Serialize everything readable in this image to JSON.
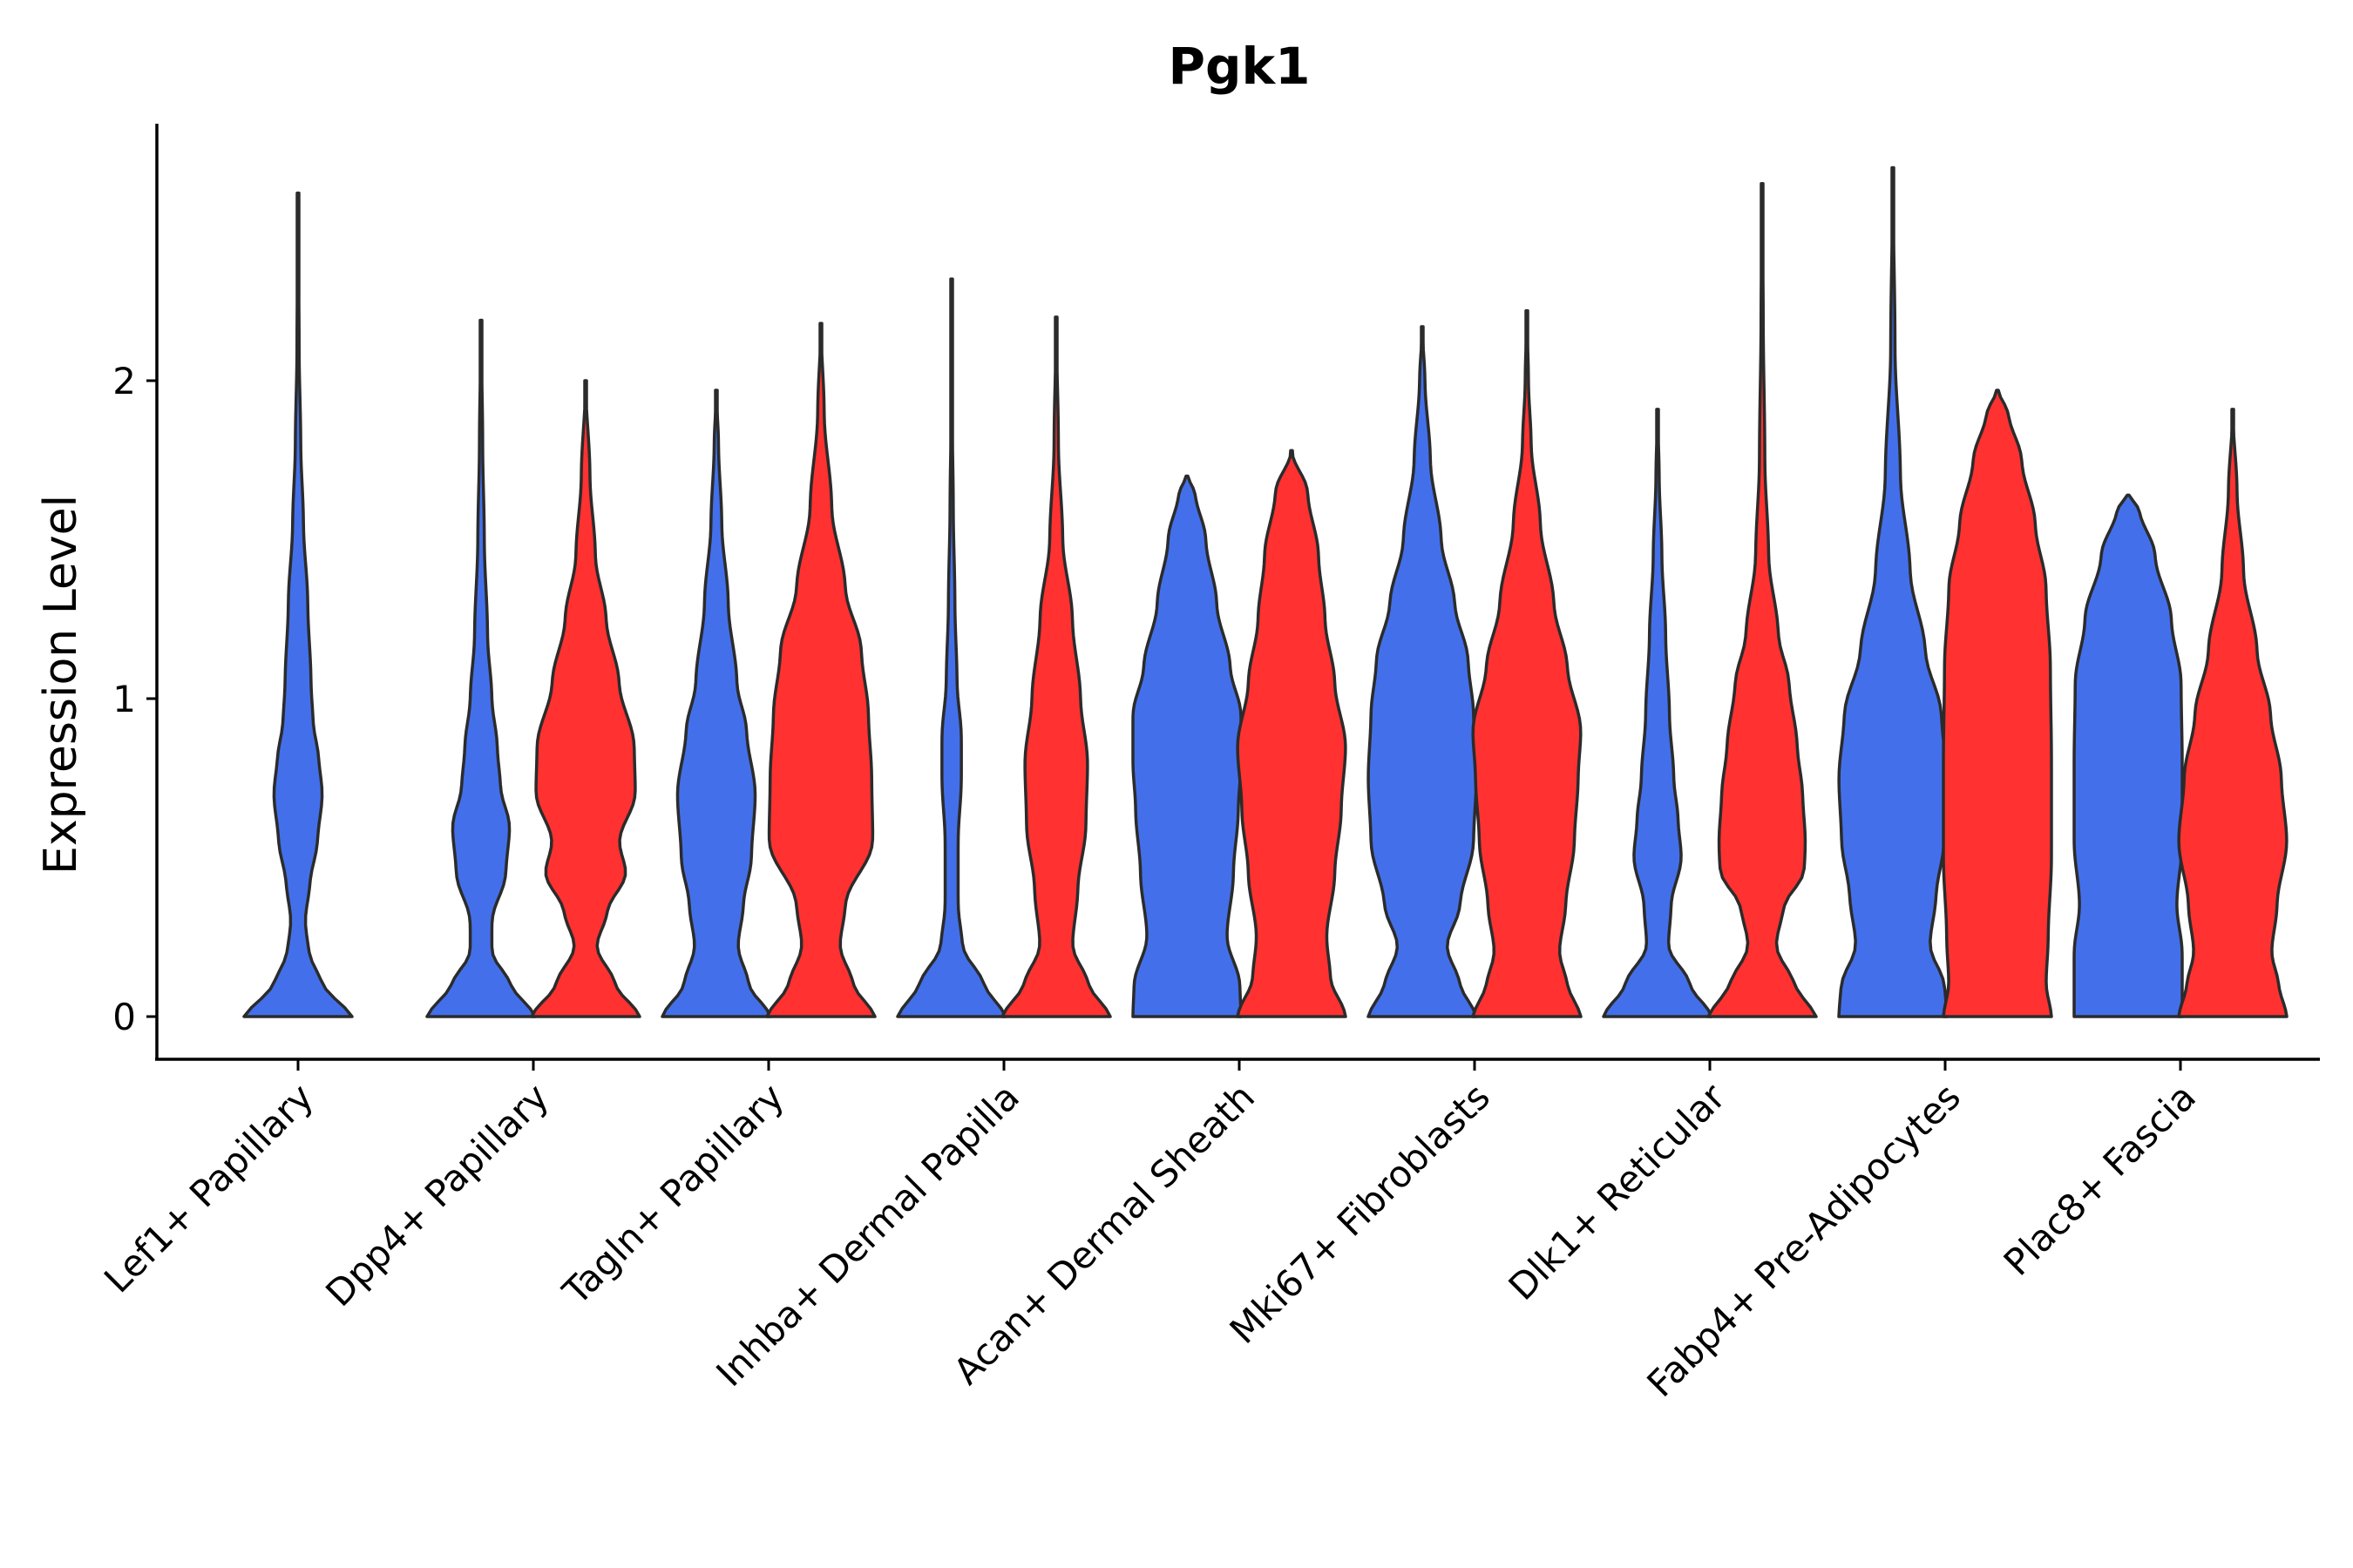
{
  "chart_data": {
    "type": "violin",
    "title": "Pgk1",
    "xlabel": "",
    "ylabel": "Expression Level",
    "ylim": [
      -0.13,
      2.8
    ],
    "yticks": [
      0,
      1,
      2
    ],
    "colors": {
      "group_a": "#4370EA",
      "group_b": "#FF3131",
      "outline": "#2b2b2b"
    },
    "categories": [
      "Lef1+ Papillary",
      "Dpp4+ Papillary",
      "Tagln+ Papillary",
      "Inhba+ Dermal Papilla",
      "Acan+ Dermal Sheath",
      "Mki67+ Fibroblasts",
      "Dlk1+ Reticular",
      "Fabp4+ Pre-Adipocytes",
      "Plac8+ Fascia"
    ],
    "series": [
      {
        "name": "group_a",
        "color": "#4370EA",
        "violins": [
          {
            "category": "Lef1+ Papillary",
            "max": 2.59,
            "halfwidth": [
              [
                0,
                1
              ],
              [
                0.1,
                0.45
              ],
              [
                0.2,
                0.2
              ],
              [
                0.3,
                0.13
              ],
              [
                0.42,
                0.22
              ],
              [
                0.55,
                0.36
              ],
              [
                0.7,
                0.45
              ],
              [
                0.82,
                0.38
              ],
              [
                0.92,
                0.28
              ],
              [
                1.05,
                0.24
              ],
              [
                1.3,
                0.18
              ],
              [
                1.55,
                0.1
              ],
              [
                1.8,
                0.05
              ],
              [
                2.1,
                0.02
              ],
              [
                2.59,
                0
              ]
            ]
          },
          {
            "category": "Dpp4+ Papillary",
            "max": 2.19,
            "halfwidth": [
              [
                0,
                1
              ],
              [
                0.1,
                0.55
              ],
              [
                0.2,
                0.2
              ],
              [
                0.3,
                0.2
              ],
              [
                0.45,
                0.46
              ],
              [
                0.6,
                0.53
              ],
              [
                0.72,
                0.36
              ],
              [
                0.85,
                0.3
              ],
              [
                1.0,
                0.2
              ],
              [
                1.2,
                0.12
              ],
              [
                1.5,
                0.06
              ],
              [
                1.8,
                0.03
              ],
              [
                2.19,
                0
              ]
            ]
          },
          {
            "category": "Tagln+ Papillary",
            "max": 1.97,
            "halfwidth": [
              [
                0,
                1
              ],
              [
                0.1,
                0.6
              ],
              [
                0.22,
                0.4
              ],
              [
                0.35,
                0.5
              ],
              [
                0.5,
                0.65
              ],
              [
                0.7,
                0.72
              ],
              [
                0.9,
                0.56
              ],
              [
                1.05,
                0.38
              ],
              [
                1.3,
                0.22
              ],
              [
                1.55,
                0.1
              ],
              [
                1.8,
                0.04
              ],
              [
                1.97,
                0
              ]
            ]
          },
          {
            "category": "Inhba+ Dermal Papilla",
            "max": 2.32,
            "halfwidth": [
              [
                0,
                1
              ],
              [
                0.1,
                0.6
              ],
              [
                0.22,
                0.2
              ],
              [
                0.35,
                0.12
              ],
              [
                0.55,
                0.12
              ],
              [
                0.75,
                0.18
              ],
              [
                0.88,
                0.18
              ],
              [
                1.05,
                0.1
              ],
              [
                1.3,
                0.06
              ],
              [
                1.6,
                0.03
              ],
              [
                1.9,
                0.01
              ],
              [
                2.32,
                0
              ]
            ]
          },
          {
            "category": "Acan+ Dermal Sheath",
            "max": 1.7,
            "halfwidth": [
              [
                0,
                1
              ],
              [
                0.1,
                0.98
              ],
              [
                0.25,
                0.74
              ],
              [
                0.45,
                0.86
              ],
              [
                0.65,
                0.95
              ],
              [
                0.8,
                1.0
              ],
              [
                0.95,
                1.0
              ],
              [
                1.1,
                0.8
              ],
              [
                1.3,
                0.55
              ],
              [
                1.5,
                0.35
              ],
              [
                1.65,
                0.15
              ],
              [
                1.7,
                0
              ]
            ]
          },
          {
            "category": "Mki67+ Fibroblasts",
            "max": 2.17,
            "halfwidth": [
              [
                0,
                1
              ],
              [
                0.1,
                0.7
              ],
              [
                0.22,
                0.45
              ],
              [
                0.35,
                0.7
              ],
              [
                0.55,
                0.95
              ],
              [
                0.75,
                1.0
              ],
              [
                0.95,
                0.95
              ],
              [
                1.12,
                0.85
              ],
              [
                1.3,
                0.6
              ],
              [
                1.5,
                0.35
              ],
              [
                1.75,
                0.15
              ],
              [
                2.0,
                0.05
              ],
              [
                2.17,
                0
              ]
            ]
          },
          {
            "category": "Dlk1+ Reticular",
            "max": 1.91,
            "halfwidth": [
              [
                0,
                1
              ],
              [
                0.1,
                0.6
              ],
              [
                0.22,
                0.2
              ],
              [
                0.35,
                0.25
              ],
              [
                0.5,
                0.44
              ],
              [
                0.62,
                0.38
              ],
              [
                0.75,
                0.3
              ],
              [
                0.95,
                0.22
              ],
              [
                1.2,
                0.15
              ],
              [
                1.45,
                0.08
              ],
              [
                1.7,
                0.03
              ],
              [
                1.91,
                0
              ]
            ]
          },
          {
            "category": "Fabp4+ Pre-Adipocytes",
            "max": 2.67,
            "halfwidth": [
              [
                0,
                1
              ],
              [
                0.1,
                0.96
              ],
              [
                0.22,
                0.68
              ],
              [
                0.38,
                0.8
              ],
              [
                0.55,
                0.95
              ],
              [
                0.75,
                1.0
              ],
              [
                0.95,
                0.9
              ],
              [
                1.15,
                0.6
              ],
              [
                1.4,
                0.32
              ],
              [
                1.7,
                0.14
              ],
              [
                2.1,
                0.04
              ],
              [
                2.67,
                0
              ]
            ]
          },
          {
            "category": "Plac8+ Fascia",
            "max": 1.64,
            "halfwidth": [
              [
                0,
                1
              ],
              [
                0.1,
                1.0
              ],
              [
                0.2,
                1.0
              ],
              [
                0.35,
                0.9
              ],
              [
                0.55,
                1.0
              ],
              [
                0.8,
                1.0
              ],
              [
                1.05,
                0.98
              ],
              [
                1.25,
                0.8
              ],
              [
                1.45,
                0.5
              ],
              [
                1.6,
                0.2
              ],
              [
                1.64,
                0
              ]
            ]
          }
        ]
      },
      {
        "name": "group_b",
        "color": "#FF3131",
        "violins": [
          {
            "category": "Dpp4+ Papillary",
            "max": 2.0,
            "halfwidth": [
              [
                0,
                1
              ],
              [
                0.1,
                0.55
              ],
              [
                0.22,
                0.2
              ],
              [
                0.33,
                0.4
              ],
              [
                0.45,
                0.75
              ],
              [
                0.55,
                0.62
              ],
              [
                0.7,
                0.92
              ],
              [
                0.85,
                0.9
              ],
              [
                1.05,
                0.62
              ],
              [
                1.25,
                0.38
              ],
              [
                1.45,
                0.18
              ],
              [
                1.7,
                0.08
              ],
              [
                2.0,
                0
              ]
            ]
          },
          {
            "category": "Tagln+ Papillary",
            "max": 2.18,
            "halfwidth": [
              [
                0,
                1
              ],
              [
                0.1,
                0.6
              ],
              [
                0.22,
                0.35
              ],
              [
                0.35,
                0.45
              ],
              [
                0.55,
                0.96
              ],
              [
                0.75,
                0.94
              ],
              [
                0.95,
                0.88
              ],
              [
                1.15,
                0.75
              ],
              [
                1.35,
                0.45
              ],
              [
                1.6,
                0.2
              ],
              [
                1.9,
                0.06
              ],
              [
                2.18,
                0
              ]
            ]
          },
          {
            "category": "Inhba+ Dermal Papilla",
            "max": 2.2,
            "halfwidth": [
              [
                0,
                1
              ],
              [
                0.1,
                0.6
              ],
              [
                0.22,
                0.3
              ],
              [
                0.4,
                0.4
              ],
              [
                0.6,
                0.55
              ],
              [
                0.8,
                0.58
              ],
              [
                1.0,
                0.45
              ],
              [
                1.25,
                0.3
              ],
              [
                1.5,
                0.12
              ],
              [
                1.8,
                0.04
              ],
              [
                2.2,
                0
              ]
            ]
          },
          {
            "category": "Acan+ Dermal Sheath",
            "max": 1.78,
            "halfwidth": [
              [
                0,
                1
              ],
              [
                0.12,
                0.72
              ],
              [
                0.25,
                0.65
              ],
              [
                0.45,
                0.8
              ],
              [
                0.65,
                0.92
              ],
              [
                0.85,
                1.0
              ],
              [
                1.05,
                0.8
              ],
              [
                1.25,
                0.62
              ],
              [
                1.45,
                0.5
              ],
              [
                1.65,
                0.3
              ],
              [
                1.78,
                0
              ]
            ]
          },
          {
            "category": "Mki67+ Fibroblasts",
            "max": 2.22,
            "halfwidth": [
              [
                0,
                1
              ],
              [
                0.1,
                0.75
              ],
              [
                0.2,
                0.6
              ],
              [
                0.35,
                0.72
              ],
              [
                0.55,
                0.88
              ],
              [
                0.75,
                0.95
              ],
              [
                0.9,
                1.0
              ],
              [
                1.1,
                0.75
              ],
              [
                1.3,
                0.5
              ],
              [
                1.55,
                0.25
              ],
              [
                1.8,
                0.08
              ],
              [
                2.0,
                0.03
              ],
              [
                2.22,
                0
              ]
            ]
          },
          {
            "category": "Dlk1+ Reticular",
            "max": 2.62,
            "halfwidth": [
              [
                0,
                1
              ],
              [
                0.1,
                0.6
              ],
              [
                0.22,
                0.25
              ],
              [
                0.35,
                0.4
              ],
              [
                0.45,
                0.78
              ],
              [
                0.55,
                0.8
              ],
              [
                0.7,
                0.75
              ],
              [
                0.85,
                0.65
              ],
              [
                1.05,
                0.5
              ],
              [
                1.2,
                0.3
              ],
              [
                1.45,
                0.12
              ],
              [
                1.75,
                0.05
              ],
              [
                2.2,
                0.02
              ],
              [
                2.62,
                0
              ]
            ]
          },
          {
            "category": "Fabp4+ Pre-Adipocytes",
            "max": 1.97,
            "halfwidth": [
              [
                0,
                1
              ],
              [
                0.1,
                0.9
              ],
              [
                0.25,
                0.94
              ],
              [
                0.5,
                1.0
              ],
              [
                0.8,
                1.0
              ],
              [
                1.1,
                0.98
              ],
              [
                1.35,
                0.9
              ],
              [
                1.55,
                0.7
              ],
              [
                1.75,
                0.45
              ],
              [
                1.9,
                0.2
              ],
              [
                1.97,
                0
              ]
            ]
          },
          {
            "category": "Plac8+ Fascia",
            "max": 1.91,
            "halfwidth": [
              [
                0,
                1
              ],
              [
                0.1,
                0.85
              ],
              [
                0.2,
                0.72
              ],
              [
                0.35,
                0.82
              ],
              [
                0.55,
                1.0
              ],
              [
                0.75,
                0.9
              ],
              [
                0.95,
                0.7
              ],
              [
                1.15,
                0.45
              ],
              [
                1.4,
                0.2
              ],
              [
                1.65,
                0.08
              ],
              [
                1.91,
                0
              ]
            ]
          }
        ]
      }
    ]
  }
}
